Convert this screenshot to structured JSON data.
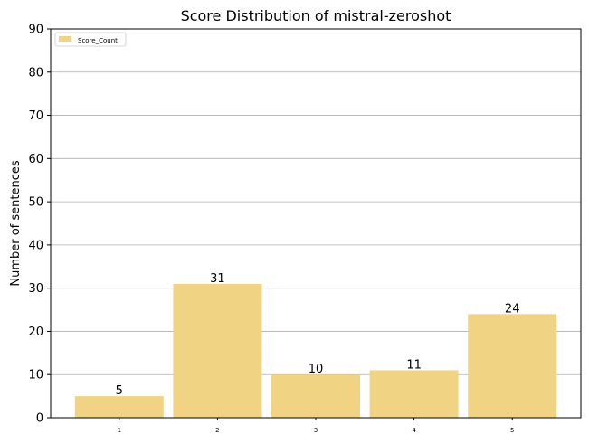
{
  "chart_data": {
    "type": "bar",
    "title": "Score Distribution of mistral-zeroshot",
    "xlabel": "",
    "ylabel": "Number of sentences",
    "categories": [
      "1",
      "2",
      "3",
      "4",
      "5"
    ],
    "series": [
      {
        "name": "Score_Count",
        "values": [
          5,
          31,
          10,
          11,
          24
        ],
        "color": "#f0d383"
      }
    ],
    "ylim": [
      0,
      90
    ],
    "yticks": [
      0,
      10,
      20,
      30,
      40,
      50,
      60,
      70,
      80,
      90
    ],
    "grid": "horizontal",
    "legend_position": "top-left",
    "data_labels": true
  }
}
